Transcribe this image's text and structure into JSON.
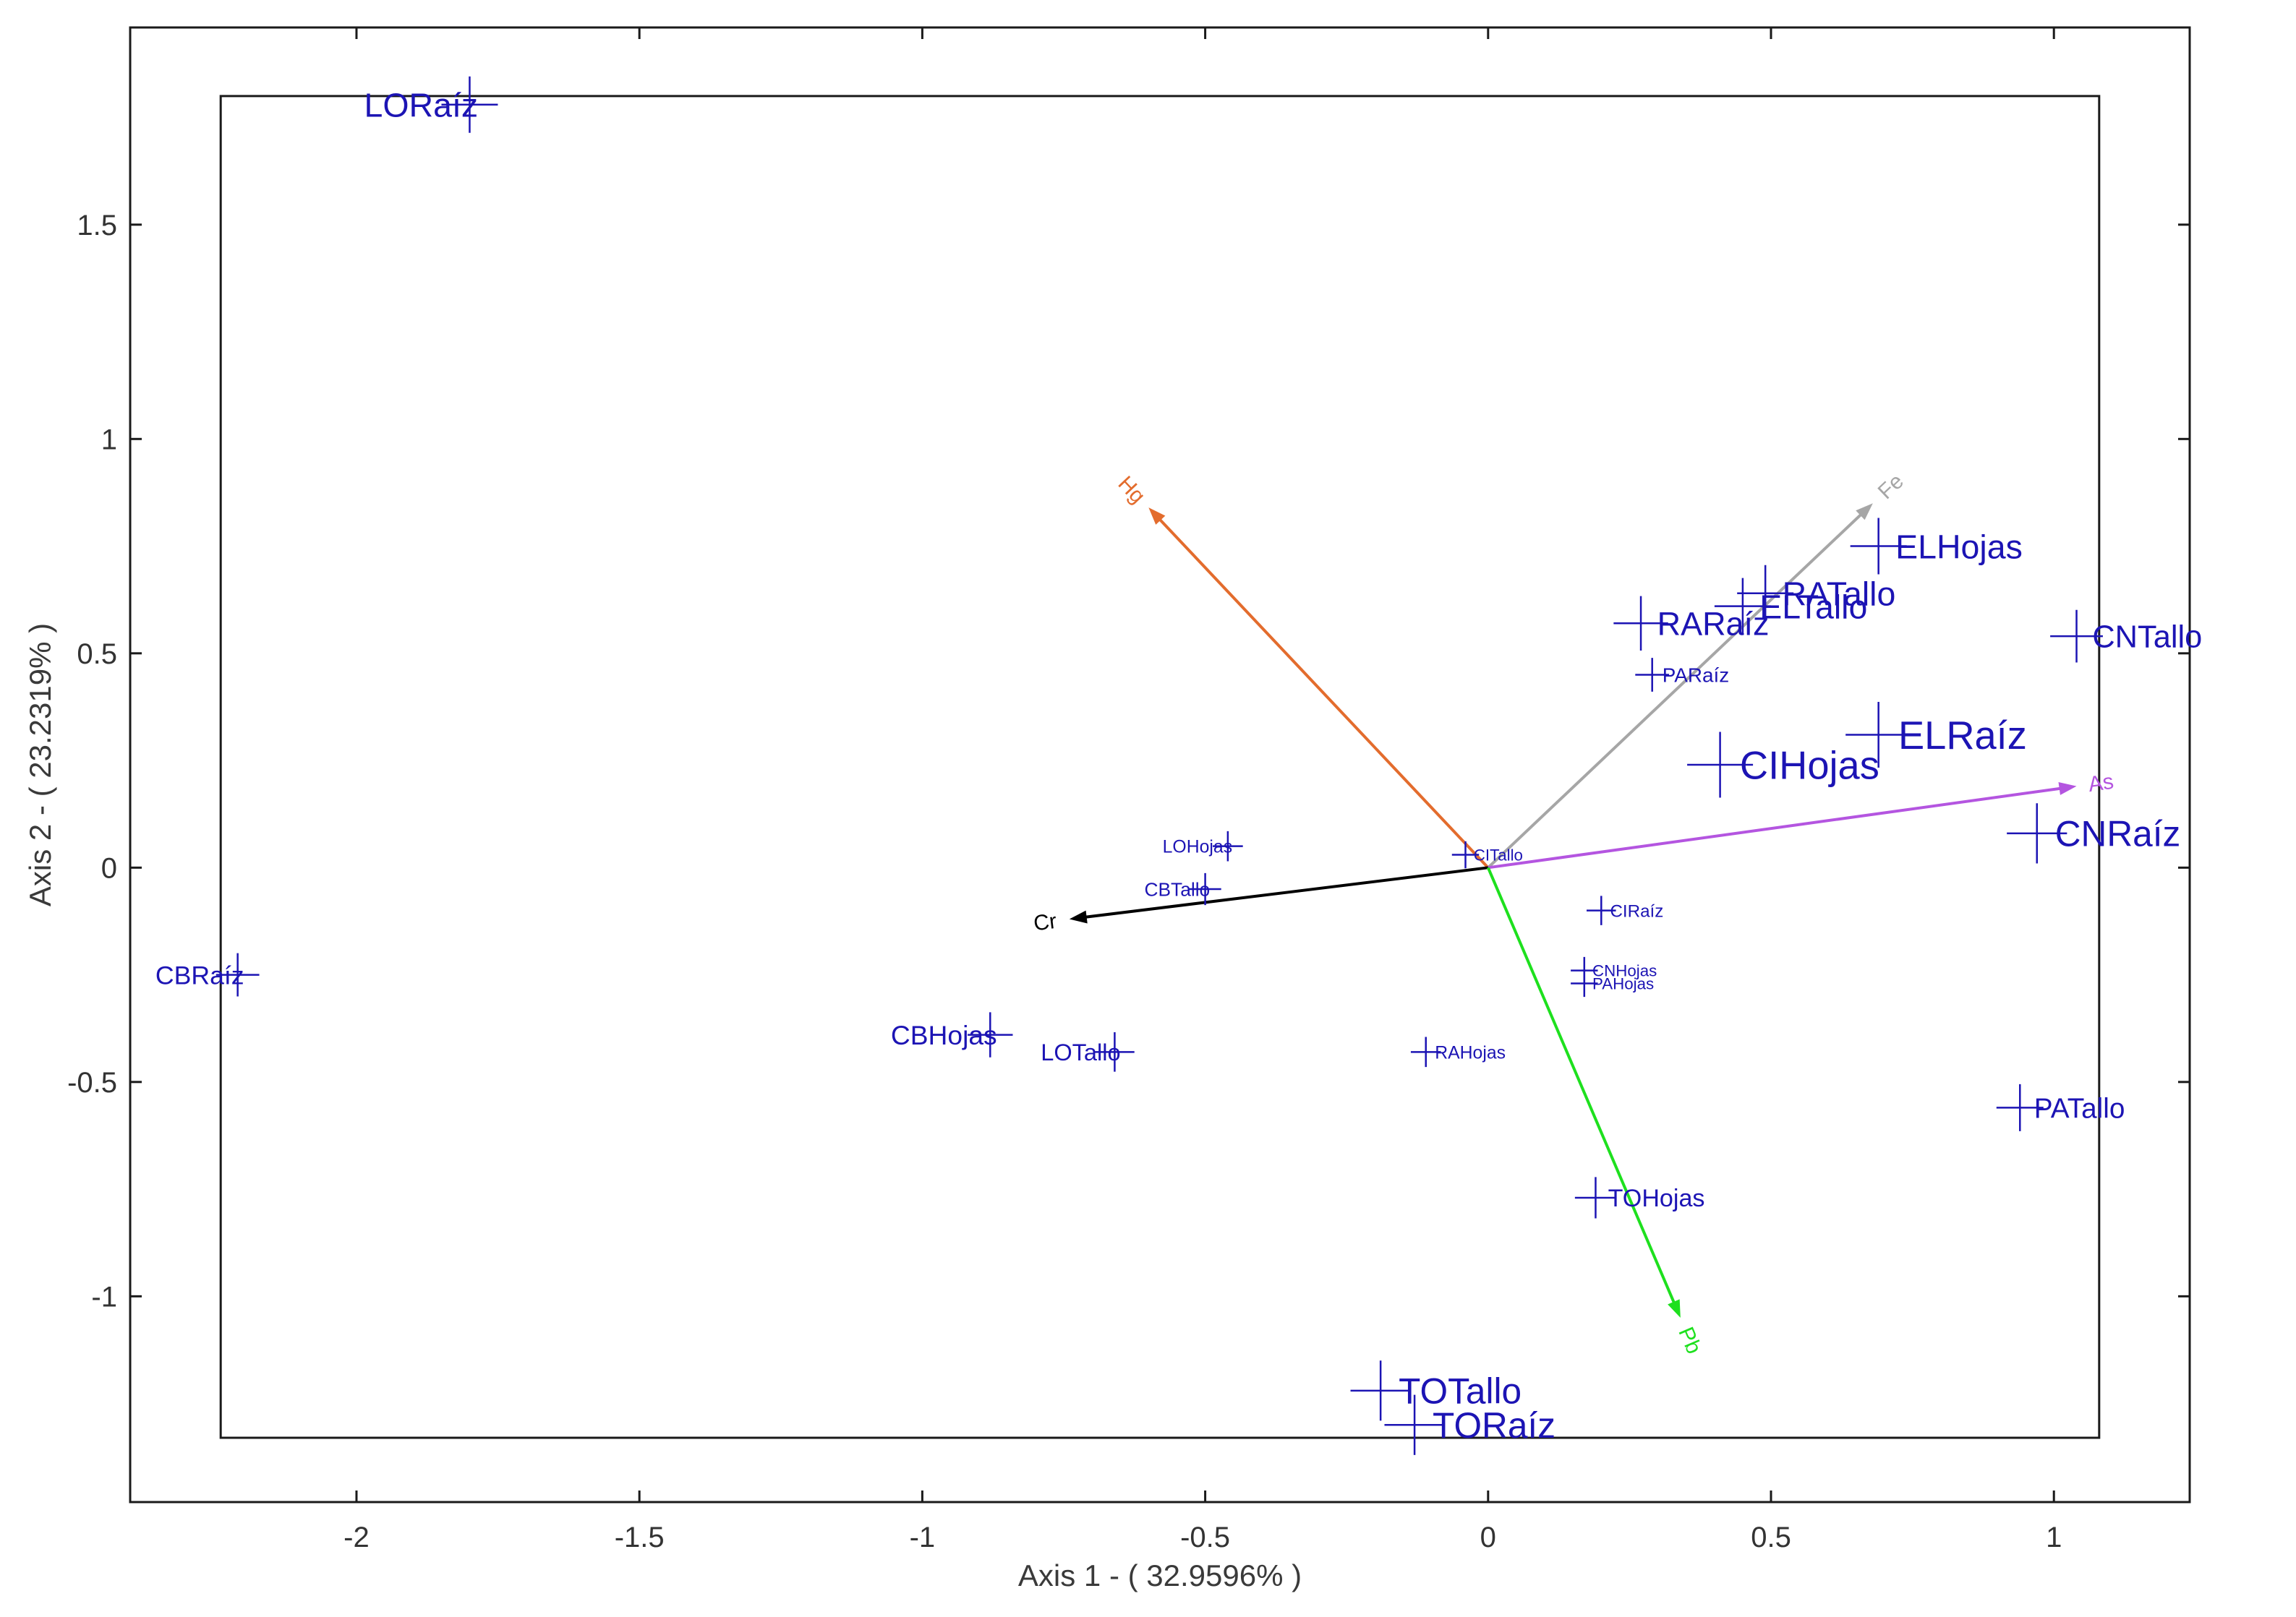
{
  "chart_data": {
    "type": "scatter",
    "subtype": "biplot",
    "title": "",
    "xlabel": "Axis 1 - ( 32.9596% )",
    "ylabel": "Axis 2 - ( 23.2319% )",
    "xlim": [
      -2.4,
      1.24
    ],
    "ylim": [
      -1.48,
      1.96
    ],
    "x_ticks": [
      {
        "value": -2,
        "label": "-2"
      },
      {
        "value": -1.5,
        "label": "-1.5"
      },
      {
        "value": -1,
        "label": "-1"
      },
      {
        "value": -0.5,
        "label": "-0.5"
      },
      {
        "value": 0,
        "label": "0"
      },
      {
        "value": 0.5,
        "label": "0.5"
      },
      {
        "value": 1,
        "label": "1"
      }
    ],
    "y_ticks": [
      {
        "value": 1.5,
        "label": "1.5"
      },
      {
        "value": 1,
        "label": "1"
      },
      {
        "value": 0.5,
        "label": "0.5"
      },
      {
        "value": 0,
        "label": "0"
      },
      {
        "value": -0.5,
        "label": "-0.5"
      },
      {
        "value": -1,
        "label": "-1"
      }
    ],
    "grid": false,
    "inner_box": {
      "x": [
        -2.24,
        1.08
      ],
      "y": [
        -1.33,
        1.8
      ]
    },
    "marker_color": "#1c14b4",
    "points": [
      {
        "label": "LORaíz",
        "x": -1.8,
        "y": 1.78,
        "size": 1.5
      },
      {
        "label": "CBRaíz",
        "x": -2.21,
        "y": -0.25,
        "size": 1.15
      },
      {
        "label": "CBHojas",
        "x": -0.88,
        "y": -0.39,
        "size": 1.2
      },
      {
        "label": "LOTallo",
        "x": -0.66,
        "y": -0.43,
        "size": 1.05
      },
      {
        "label": "LOHojas",
        "x": -0.46,
        "y": 0.05,
        "size": 0.8
      },
      {
        "label": "CBTallo",
        "x": -0.5,
        "y": -0.05,
        "size": 0.85
      },
      {
        "label": "CITallo",
        "x": -0.04,
        "y": 0.03,
        "size": 0.72
      },
      {
        "label": "RAHojas",
        "x": -0.11,
        "y": -0.43,
        "size": 0.8
      },
      {
        "label": "CIRaíz",
        "x": 0.2,
        "y": -0.1,
        "size": 0.78
      },
      {
        "label": "CNHojas",
        "x": 0.17,
        "y": -0.24,
        "size": 0.72
      },
      {
        "label": "PAHojas",
        "x": 0.17,
        "y": -0.27,
        "size": 0.72
      },
      {
        "label": "TOHojas",
        "x": 0.19,
        "y": -0.77,
        "size": 1.1
      },
      {
        "label": "TOTallo",
        "x": -0.19,
        "y": -1.22,
        "size": 1.6
      },
      {
        "label": "TORaíz",
        "x": -0.13,
        "y": -1.3,
        "size": 1.6
      },
      {
        "label": "PARaíz",
        "x": 0.29,
        "y": 0.45,
        "size": 0.9
      },
      {
        "label": "RARaíz",
        "x": 0.27,
        "y": 0.57,
        "size": 1.45
      },
      {
        "label": "ELTallo",
        "x": 0.45,
        "y": 0.61,
        "size": 1.5
      },
      {
        "label": "RATallo",
        "x": 0.49,
        "y": 0.64,
        "size": 1.5
      },
      {
        "label": "CIHojas",
        "x": 0.41,
        "y": 0.24,
        "size": 1.75
      },
      {
        "label": "ELHojas",
        "x": 0.69,
        "y": 0.75,
        "size": 1.5
      },
      {
        "label": "ELRaíz",
        "x": 0.69,
        "y": 0.31,
        "size": 1.75
      },
      {
        "label": "CNTallo",
        "x": 1.04,
        "y": 0.54,
        "size": 1.4
      },
      {
        "label": "CNRaíz",
        "x": 0.97,
        "y": 0.08,
        "size": 1.6
      },
      {
        "label": "PATallo",
        "x": 0.94,
        "y": -0.56,
        "size": 1.25
      }
    ],
    "vectors": [
      {
        "label": "Hg",
        "x": -0.6,
        "y": 0.84,
        "color": "#e36c2d"
      },
      {
        "label": "Fe",
        "x": 0.68,
        "y": 0.85,
        "color": "#a6a6a6"
      },
      {
        "label": "As",
        "x": 1.04,
        "y": 0.19,
        "color": "#b455e0"
      },
      {
        "label": "Cr",
        "x": -0.74,
        "y": -0.12,
        "color": "#000000"
      },
      {
        "label": "Pb",
        "x": 0.34,
        "y": -1.05,
        "color": "#1ee01e"
      }
    ]
  }
}
